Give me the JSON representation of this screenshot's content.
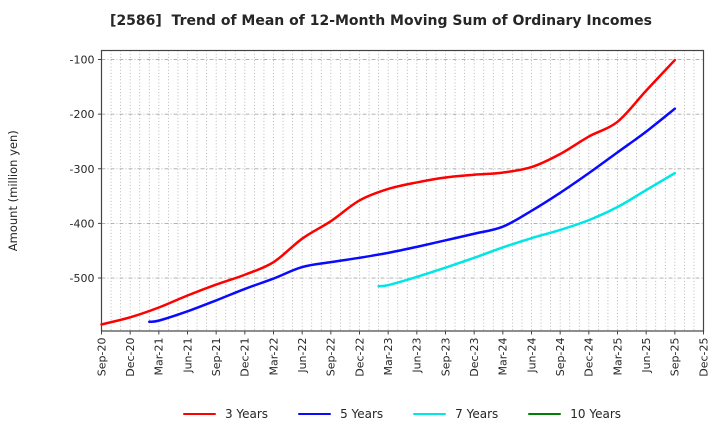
{
  "chart_data": {
    "type": "line",
    "title": "[2586]  Trend of Mean of 12-Month Moving Sum of Ordinary Incomes",
    "ylabel": "Amount (million yen)",
    "xlabel": "",
    "y_ticks": [
      -100,
      -200,
      -300,
      -400,
      -500
    ],
    "ylim": [
      -597,
      -83.5
    ],
    "x_tick_labels": [
      "Sep-20",
      "Dec-20",
      "Mar-21",
      "Jun-21",
      "Sep-21",
      "Dec-21",
      "Mar-22",
      "Jun-22",
      "Sep-22",
      "Dec-22",
      "Mar-23",
      "Jun-23",
      "Sep-23",
      "Dec-23",
      "Mar-24",
      "Jun-24",
      "Sep-24",
      "Dec-24",
      "Mar-25",
      "Jun-25",
      "Sep-25",
      "Dec-25"
    ],
    "x_months_total": 63,
    "x_tick_month_step": 3,
    "grid": {
      "vertical": "monthly dotted",
      "horizontal": "at y ticks",
      "color": "#a9a9a9"
    },
    "legend_position": "bottom",
    "axis_color": "#444444",
    "text_color": "#262626",
    "series": [
      {
        "name": "3 Years",
        "color": "#ff0000",
        "months": [
          0,
          3,
          6,
          9,
          12,
          15,
          18,
          21,
          24,
          27,
          30,
          33,
          36,
          39,
          42,
          45,
          48,
          51,
          54,
          57,
          60
        ],
        "values": [
          -585,
          -572,
          -554,
          -532,
          -512,
          -494,
          -471,
          -428,
          -396,
          -358,
          -337,
          -325,
          -316,
          -311,
          -307,
          -297,
          -273,
          -241,
          -214,
          -157,
          -101
        ]
      },
      {
        "name": "5 Years",
        "color": "#0a0aff",
        "months": [
          5,
          6,
          9,
          12,
          15,
          18,
          21,
          24,
          27,
          30,
          33,
          36,
          39,
          42,
          45,
          48,
          51,
          54,
          57,
          60
        ],
        "values": [
          -580,
          -578,
          -561,
          -541,
          -520,
          -501,
          -480,
          -471,
          -463,
          -454,
          -443,
          -431,
          -419,
          -406,
          -377,
          -344,
          -308,
          -270,
          -232,
          -190
        ]
      },
      {
        "name": "7 Years",
        "color": "#00e6e6",
        "months": [
          29,
          30,
          33,
          36,
          39,
          42,
          45,
          48,
          51,
          54,
          57,
          60
        ],
        "values": [
          -515,
          -513,
          -498,
          -481,
          -463,
          -444,
          -427,
          -412,
          -394,
          -370,
          -339,
          -308
        ]
      },
      {
        "name": "10 Years",
        "color": "#008000",
        "months": [],
        "values": []
      }
    ]
  }
}
